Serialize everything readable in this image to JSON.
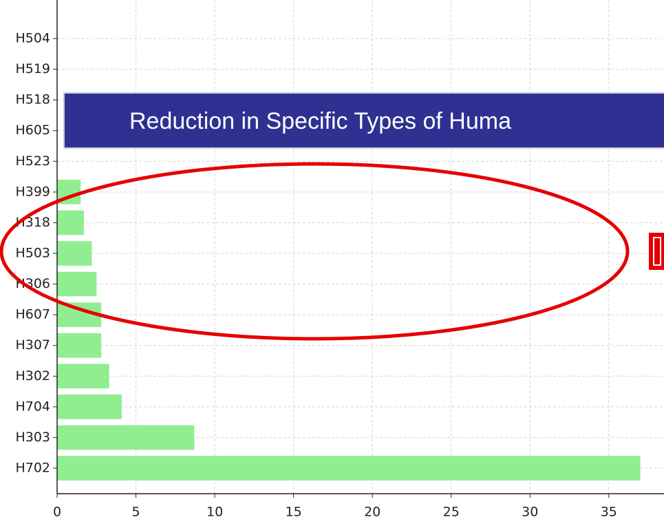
{
  "chart_data": {
    "type": "barh",
    "annotations": [
      "Reduction in Specific Types of Huma"
    ],
    "categories": [
      "H504",
      "H519",
      "H518",
      "H605",
      "H523",
      "H399",
      "H318",
      "H503",
      "H306",
      "H607",
      "H307",
      "H302",
      "H704",
      "H303",
      "H702"
    ],
    "values": [
      0,
      0,
      0,
      0,
      0,
      1.5,
      1.7,
      2.2,
      2.5,
      2.8,
      2.8,
      3.3,
      4.1,
      8.7,
      37.0
    ],
    "color": "#90ee90",
    "xlim": [
      0,
      38.5
    ],
    "xticks": [
      0,
      5,
      10,
      15,
      20,
      25,
      30,
      35
    ],
    "grid": true
  }
}
